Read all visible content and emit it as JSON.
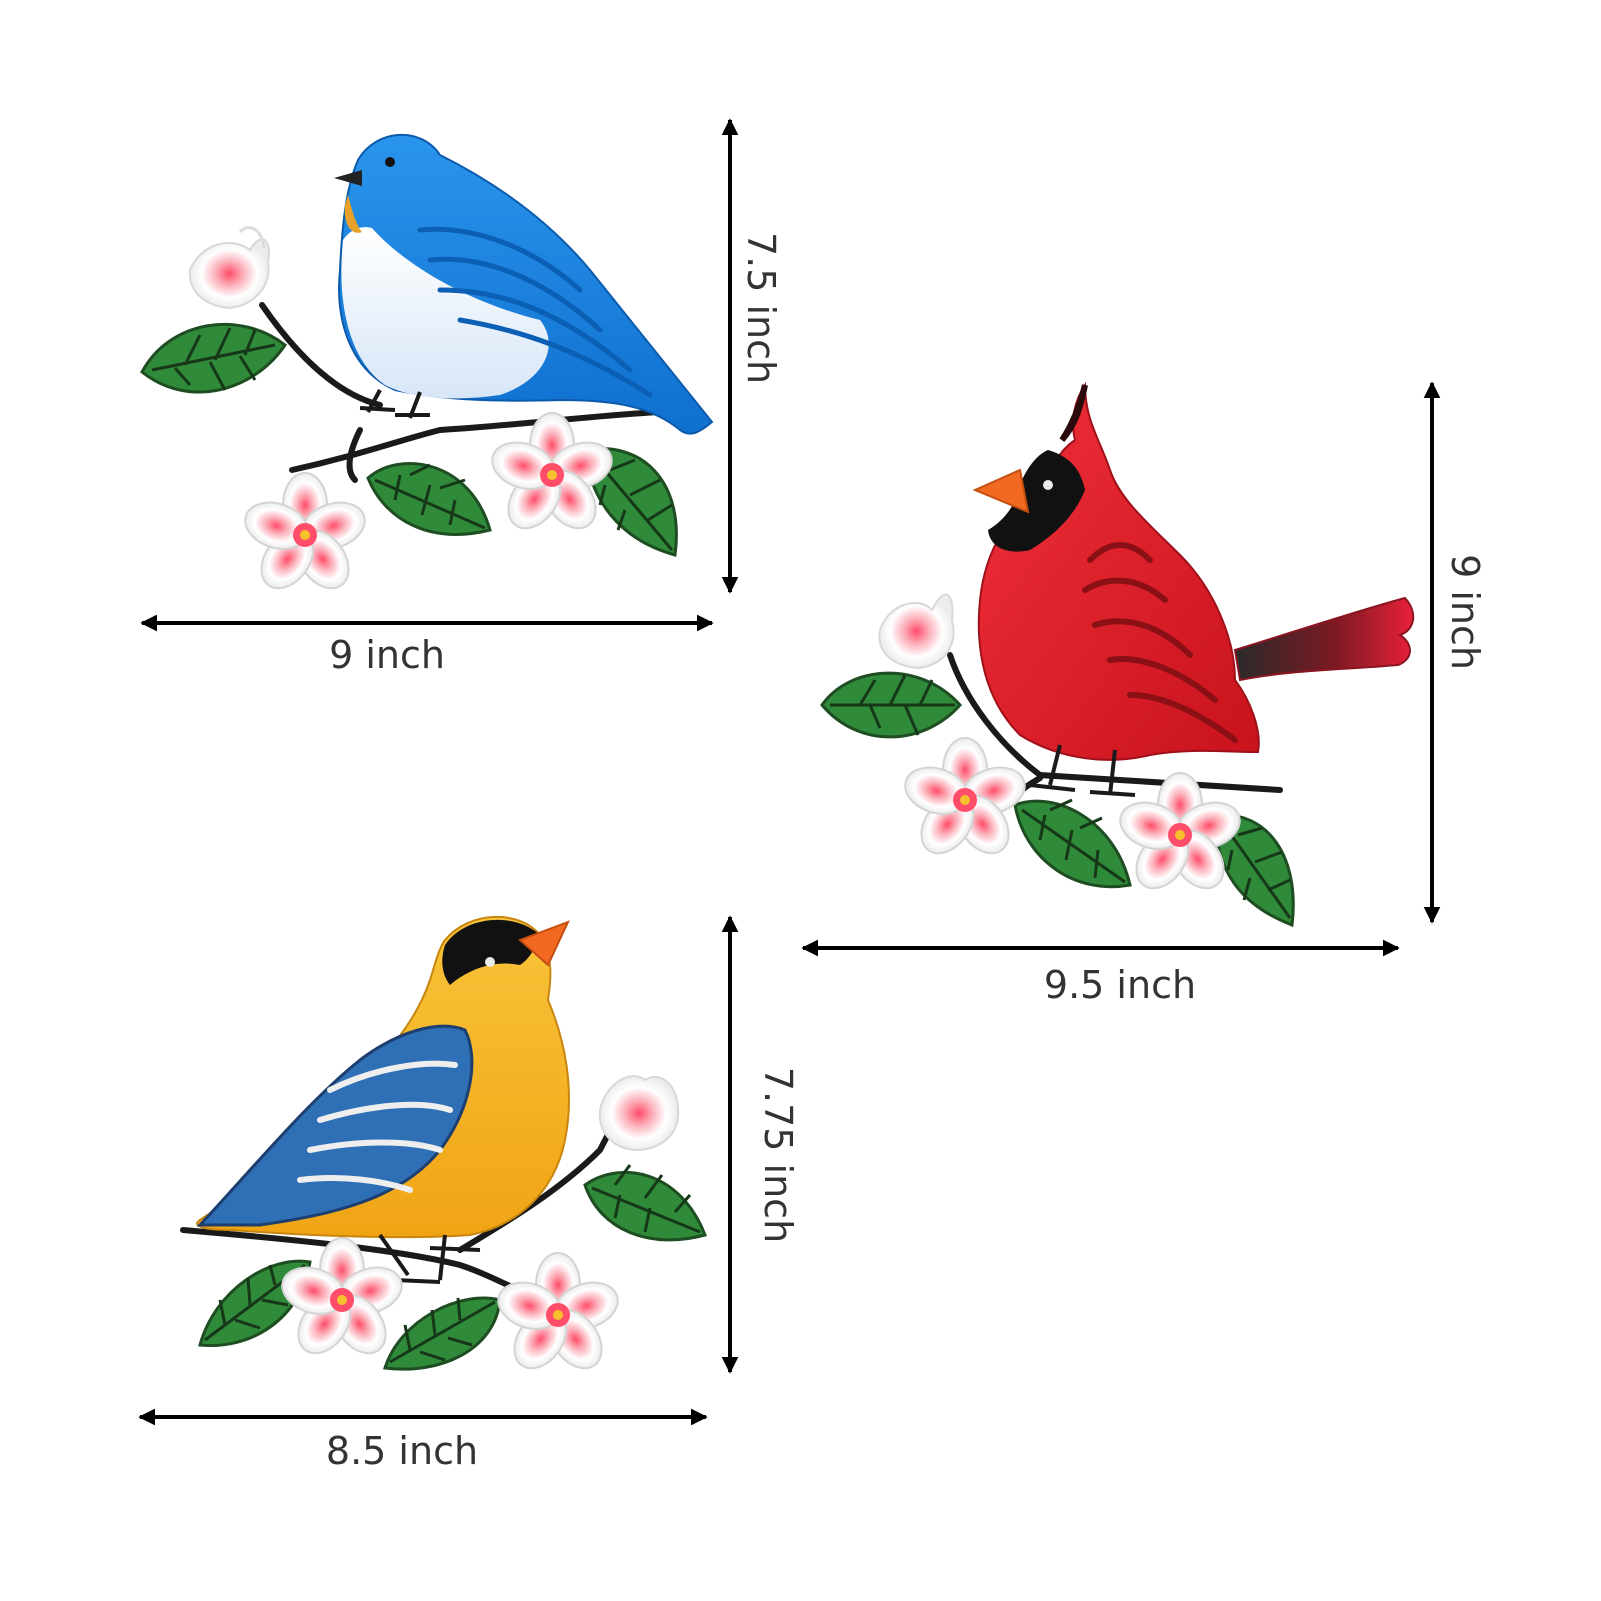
{
  "colors": {
    "background": "#ffffff",
    "arrow": "#000000",
    "label": "#333333",
    "bluebird": "#1a86e0",
    "bluebird_belly": "#eef3fb",
    "cardinal": "#e31b23",
    "cardinal_mask": "#111111",
    "goldfinch": "#f5b21c",
    "goldfinch_cap": "#111111",
    "beak_orange": "#f26a21",
    "leaf": "#2f8a3a",
    "leaf_dark": "#1e4d22",
    "flower": "#f7f7f7",
    "flower_center": "#f06a7a",
    "branch": "#1a1a1a"
  },
  "figures": [
    {
      "id": "bluebird",
      "name": "Bluebird",
      "width_label": "9 inch",
      "height_label": "7.5 inch"
    },
    {
      "id": "cardinal",
      "name": "Cardinal",
      "width_label": "9.5 inch",
      "height_label": "9 inch"
    },
    {
      "id": "goldfinch",
      "name": "Goldfinch",
      "width_label": "8.5 inch",
      "height_label": "7.75 inch"
    }
  ]
}
